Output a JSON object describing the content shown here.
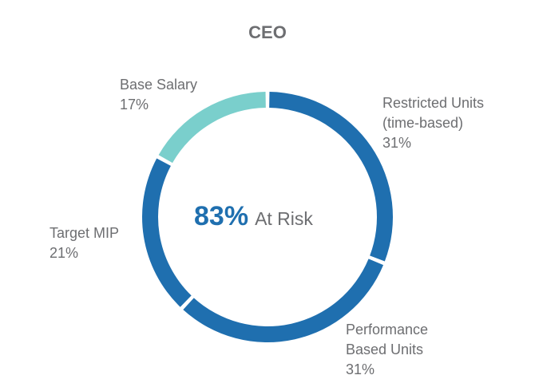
{
  "chart_data": {
    "type": "pie",
    "variant": "donut",
    "title": "CEO",
    "center_label": {
      "value": "83%",
      "text": "At Risk"
    },
    "categories": [
      "Restricted Units (time-based)",
      "Performance Based Units",
      "Target MIP",
      "Base Salary"
    ],
    "values": [
      31,
      31,
      21,
      17
    ],
    "value_labels": [
      "31%",
      "31%",
      "21%",
      "17%"
    ],
    "label_lines": [
      [
        "Restricted Units",
        "(time-based)"
      ],
      [
        "Performance",
        "Based Units"
      ],
      [
        "Target MIP"
      ],
      [
        "Base Salary"
      ]
    ],
    "colors": [
      "#1f6faf",
      "#1f6faf",
      "#1f6faf",
      "#7acfcc"
    ],
    "start_angle_deg": 0,
    "direction": "clockwise"
  }
}
